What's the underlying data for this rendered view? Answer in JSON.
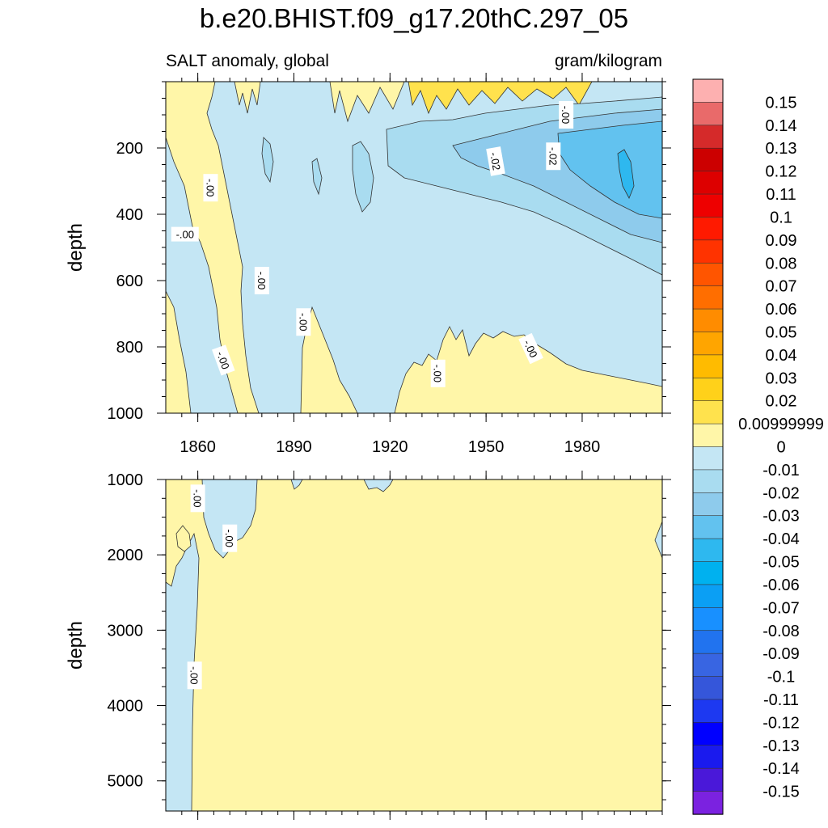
{
  "chart_data": {
    "type": "heatmap",
    "title": "b.e20.BHIST.f09_g17.20thC.297_05",
    "subtitle_left": "SALT anomaly, global",
    "subtitle_right": "gram/kilogram",
    "xlabel": "",
    "xlim": [
      1850,
      2005
    ],
    "x_ticks": [
      "1860",
      "1890",
      "1920",
      "1950",
      "1980"
    ],
    "panels": [
      {
        "name": "upper",
        "ylabel": "depth",
        "ylim": [
          0,
          1000
        ],
        "y_ticks": [
          "200",
          "400",
          "600",
          "800",
          "1000"
        ],
        "contour_labels": [
          {
            "text": "-.00",
            "x": 1856,
            "y": 460,
            "rotation": 0
          },
          {
            "text": "-.00",
            "x": 1864,
            "y": 320,
            "rotation": 90
          },
          {
            "text": "-.00",
            "x": 1880,
            "y": 600,
            "rotation": 90
          },
          {
            "text": "-.00",
            "x": 1893,
            "y": 725,
            "rotation": 90
          },
          {
            "text": "-.00",
            "x": 1868,
            "y": 840,
            "rotation": 70
          },
          {
            "text": "-.00",
            "x": 1935,
            "y": 880,
            "rotation": 90
          },
          {
            "text": "-.00",
            "x": 1964,
            "y": 805,
            "rotation": 65
          },
          {
            "text": "-.02",
            "x": 1953,
            "y": 240,
            "rotation": 80
          },
          {
            "text": "-.02",
            "x": 1971,
            "y": 225,
            "rotation": 90
          },
          {
            "text": "-.00",
            "x": 1975,
            "y": 100,
            "rotation": 90
          }
        ]
      },
      {
        "name": "lower",
        "ylabel": "depth",
        "ylim": [
          1000,
          5400
        ],
        "y_ticks": [
          "1000",
          "2000",
          "3000",
          "4000",
          "5000"
        ],
        "contour_labels": [
          {
            "text": "-.00",
            "x": 1860,
            "y": 1250,
            "rotation": 90
          },
          {
            "text": "-.00",
            "x": 1870,
            "y": 1780,
            "rotation": 90
          },
          {
            "text": "-.00",
            "x": 1859,
            "y": 3600,
            "rotation": 90
          }
        ]
      }
    ],
    "colorbar": {
      "labels": [
        "0.15",
        "0.14",
        "0.13",
        "0.12",
        "0.11",
        "0.1",
        "0.09",
        "0.08",
        "0.07",
        "0.06",
        "0.05",
        "0.04",
        "0.03",
        "0.02",
        "0.00999999",
        "0",
        "-0.01",
        "-0.02",
        "-0.03",
        "-0.04",
        "-0.05",
        "-0.06",
        "-0.07",
        "-0.08",
        "-0.09",
        "-0.1",
        "-0.11",
        "-0.12",
        "-0.13",
        "-0.14",
        "-0.15"
      ],
      "colors": [
        "#fdb0b0",
        "#e96a6a",
        "#d52a2a",
        "#cc0000",
        "#dd0000",
        "#ee0000",
        "#ff1a00",
        "#ff3300",
        "#ff5500",
        "#ff6e00",
        "#ff8c00",
        "#ffa500",
        "#ffbb00",
        "#ffd11a",
        "#ffe24d",
        "#fff6a8",
        "#c4e6f4",
        "#a9dcf0",
        "#8ecbec",
        "#62c2ef",
        "#2eb8ef",
        "#00b1ef",
        "#0b9ff4",
        "#1890ff",
        "#2173ef",
        "#3865e2",
        "#3556da",
        "#1d39f1",
        "#0000ff",
        "#1a1aee",
        "#4a18d9",
        "#7b22e0"
      ]
    },
    "fill_levels": {
      "light_yellow": "#fff6a8",
      "yellow": "#ffe24d",
      "light_blue": "#c4e6f4",
      "blue1": "#a9dcf0",
      "blue2": "#8ecbec",
      "blue3": "#62c2ef",
      "blue4": "#2eb8ef"
    }
  }
}
